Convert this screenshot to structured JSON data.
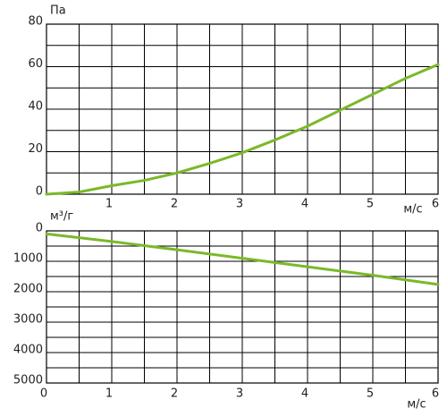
{
  "chart_data": [
    {
      "type": "line",
      "y_label": "Па",
      "x_label": "м/с",
      "x": [
        0,
        0.5,
        1,
        1.5,
        2,
        2.5,
        3,
        3.5,
        4,
        4.5,
        5,
        5.5,
        6
      ],
      "values": [
        0,
        1,
        4,
        6.5,
        10,
        14.5,
        19.5,
        25.5,
        32,
        39.5,
        47,
        54.5,
        61
      ],
      "color": "#7ab929",
      "xlim": [
        0,
        6
      ],
      "xticks": [
        1,
        2,
        3,
        4,
        5,
        6
      ],
      "x_minor_ticks": [
        0.5,
        1.5,
        2.5,
        3.5,
        4.5,
        5.5
      ],
      "ylim": [
        0,
        80
      ],
      "yticks": [
        0,
        20,
        40,
        60,
        80
      ],
      "y_minor_ticks": [
        10,
        30,
        50,
        70
      ],
      "grid": true,
      "y_inverted": false
    },
    {
      "type": "line",
      "y_label": "м³/г",
      "x_label": "м/с",
      "x": [
        0,
        1,
        2,
        3,
        4,
        5,
        6
      ],
      "values": [
        100,
        350,
        620,
        900,
        1180,
        1460,
        1760
      ],
      "color": "#7ab929",
      "xlim": [
        0,
        6
      ],
      "xticks": [
        0,
        1,
        2,
        3,
        4,
        5,
        6
      ],
      "x_minor_ticks": [
        0.5,
        1.5,
        2.5,
        3.5,
        4.5,
        5.5
      ],
      "ylim": [
        0,
        5000
      ],
      "yticks": [
        0,
        1000,
        2000,
        3000,
        4000,
        5000
      ],
      "y_minor_ticks": [
        500,
        1500,
        2500,
        3500,
        4500
      ],
      "grid": true,
      "y_inverted": true
    }
  ]
}
